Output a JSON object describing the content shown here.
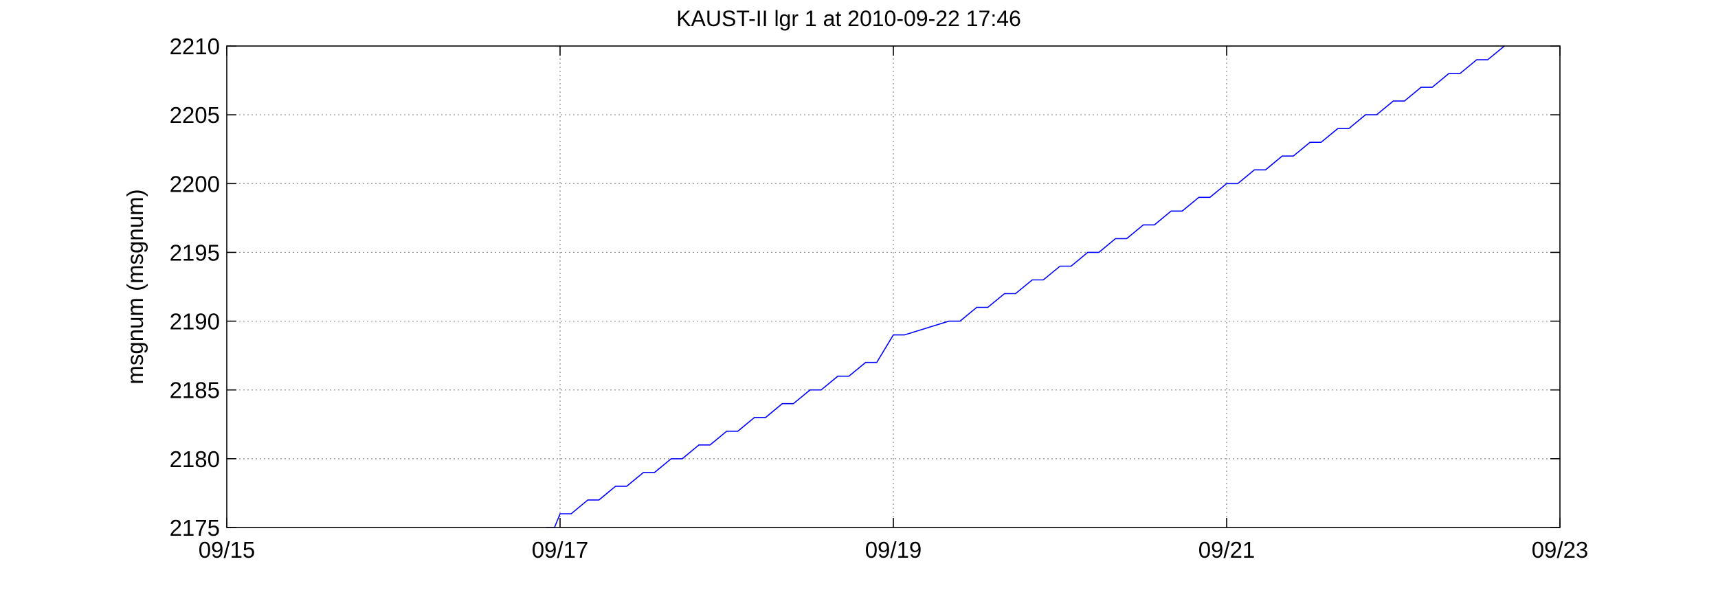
{
  "chart_data": {
    "type": "line",
    "title": "KAUST-II lgr 1 at 2010-09-22 17:46",
    "xlabel": "",
    "ylabel": "msgnum (msgnum)",
    "xlim": [
      "09/15",
      "09/23"
    ],
    "ylim": [
      2175,
      2210
    ],
    "x_ticks": [
      "09/15",
      "09/17",
      "09/19",
      "09/21",
      "09/23"
    ],
    "y_ticks": [
      2175,
      2180,
      2185,
      2190,
      2195,
      2200,
      2205,
      2210
    ],
    "grid": true,
    "colors": {
      "series": "#0000ff",
      "axes": "#000000",
      "grid": "#8a8a8a"
    },
    "series": [
      {
        "step_points": [
          [
            "09/16 22:00",
            2175
          ],
          [
            "09/17 00:00",
            2176
          ],
          [
            "09/17 04:00",
            2177
          ],
          [
            "09/17 08:00",
            2178
          ],
          [
            "09/17 12:00",
            2179
          ],
          [
            "09/17 16:00",
            2180
          ],
          [
            "09/17 20:00",
            2181
          ],
          [
            "09/18 00:00",
            2182
          ],
          [
            "09/18 04:00",
            2183
          ],
          [
            "09/18 08:00",
            2184
          ],
          [
            "09/18 12:00",
            2185
          ],
          [
            "09/18 16:00",
            2186
          ],
          [
            "09/18 20:00",
            2187
          ],
          [
            "09/19 00:00",
            2189
          ],
          [
            "09/19 08:00",
            2190
          ],
          [
            "09/19 12:00",
            2191
          ],
          [
            "09/19 16:00",
            2192
          ],
          [
            "09/19 20:00",
            2193
          ],
          [
            "09/20 00:00",
            2194
          ],
          [
            "09/20 04:00",
            2195
          ],
          [
            "09/20 08:00",
            2196
          ],
          [
            "09/20 12:00",
            2197
          ],
          [
            "09/20 16:00",
            2198
          ],
          [
            "09/20 20:00",
            2199
          ],
          [
            "09/21 00:00",
            2200
          ],
          [
            "09/21 04:00",
            2201
          ],
          [
            "09/21 08:00",
            2202
          ],
          [
            "09/21 12:00",
            2203
          ],
          [
            "09/21 16:00",
            2204
          ],
          [
            "09/21 20:00",
            2205
          ],
          [
            "09/22 00:00",
            2206
          ],
          [
            "09/22 04:00",
            2207
          ],
          [
            "09/22 08:00",
            2208
          ],
          [
            "09/22 12:00",
            2209
          ],
          [
            "09/22 16:00",
            2210
          ]
        ]
      }
    ]
  }
}
